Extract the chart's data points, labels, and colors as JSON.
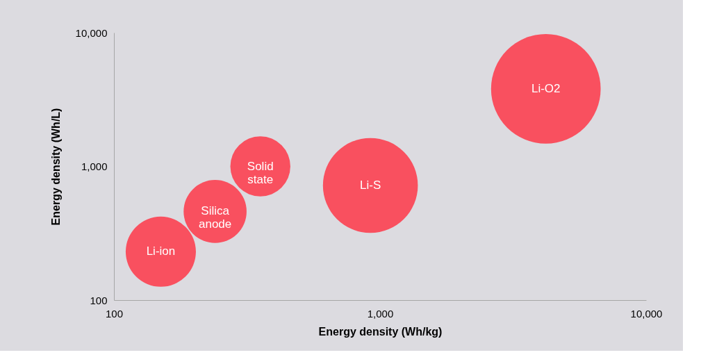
{
  "chart_data": {
    "type": "bubble",
    "xlabel": "Energy density (Wh/kg)",
    "ylabel": "Energy density (Wh/L)",
    "log": "xy",
    "xlim": [
      100,
      10000
    ],
    "ylim": [
      100,
      10000
    ],
    "xticks": [
      100,
      {
        "value": 1000,
        "label": "1,000"
      },
      {
        "value": 10000,
        "label": "10,000"
      }
    ],
    "yticks": [
      100,
      {
        "value": 1000,
        "label": "1,000"
      },
      {
        "value": 10000,
        "label": "10,000"
      }
    ],
    "series": [
      {
        "name": "Li-ion",
        "color": "#f9505f",
        "x": [
          150
        ],
        "values": [
          230
        ],
        "sizes": [
          0.41
        ]
      },
      {
        "name": "Silica anode",
        "color": "#f9505f",
        "x": [
          240
        ],
        "values": [
          460
        ],
        "sizes": [
          0.33
        ]
      },
      {
        "name": "Solid state",
        "color": "#f9505f",
        "x": [
          355
        ],
        "values": [
          1000
        ],
        "sizes": [
          0.3
        ]
      },
      {
        "name": "Li-S",
        "color": "#f9505f",
        "x": [
          920
        ],
        "values": [
          720
        ],
        "sizes": [
          0.75
        ]
      },
      {
        "name": "Li-O2",
        "color": "#f9505f",
        "x": [
          4200
        ],
        "values": [
          3800
        ],
        "sizes": [
          1
        ]
      }
    ]
  }
}
